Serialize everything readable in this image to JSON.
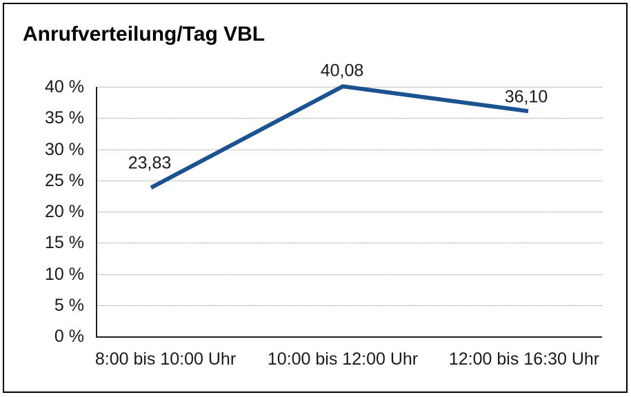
{
  "page": {
    "background_color": "#ffffff",
    "frame_border_color": "#000000"
  },
  "title": "Anrufverteilung/Tag VBL",
  "chart_data": {
    "type": "line",
    "title": "Anrufverteilung/Tag VBL",
    "categories": [
      "8:00 bis 10:00 Uhr",
      "10:00 bis 12:00 Uhr",
      "12:00 bis 16:30 Uhr"
    ],
    "series": [
      {
        "name": "Anrufverteilung/Tag VBL",
        "values": [
          23.83,
          40.08,
          36.1
        ],
        "point_labels": [
          "23,83",
          "40,08",
          "36,10"
        ],
        "color": "#1B5291"
      }
    ],
    "xlabel": "",
    "ylabel": "",
    "ylim": [
      0,
      40
    ],
    "ytick_step": 5,
    "ytick_labels": [
      "0 %",
      "5 %",
      "10 %",
      "15 %",
      "20 %",
      "25 %",
      "30 %",
      "35 %",
      "40 %"
    ],
    "grid": {
      "horizontal": true,
      "vertical": false,
      "style": "dotted",
      "color": "#8f8f8f"
    },
    "legend": "none",
    "markers": "none",
    "axis_color": "#1f1f1f",
    "label_color": "#1a1a1a"
  }
}
